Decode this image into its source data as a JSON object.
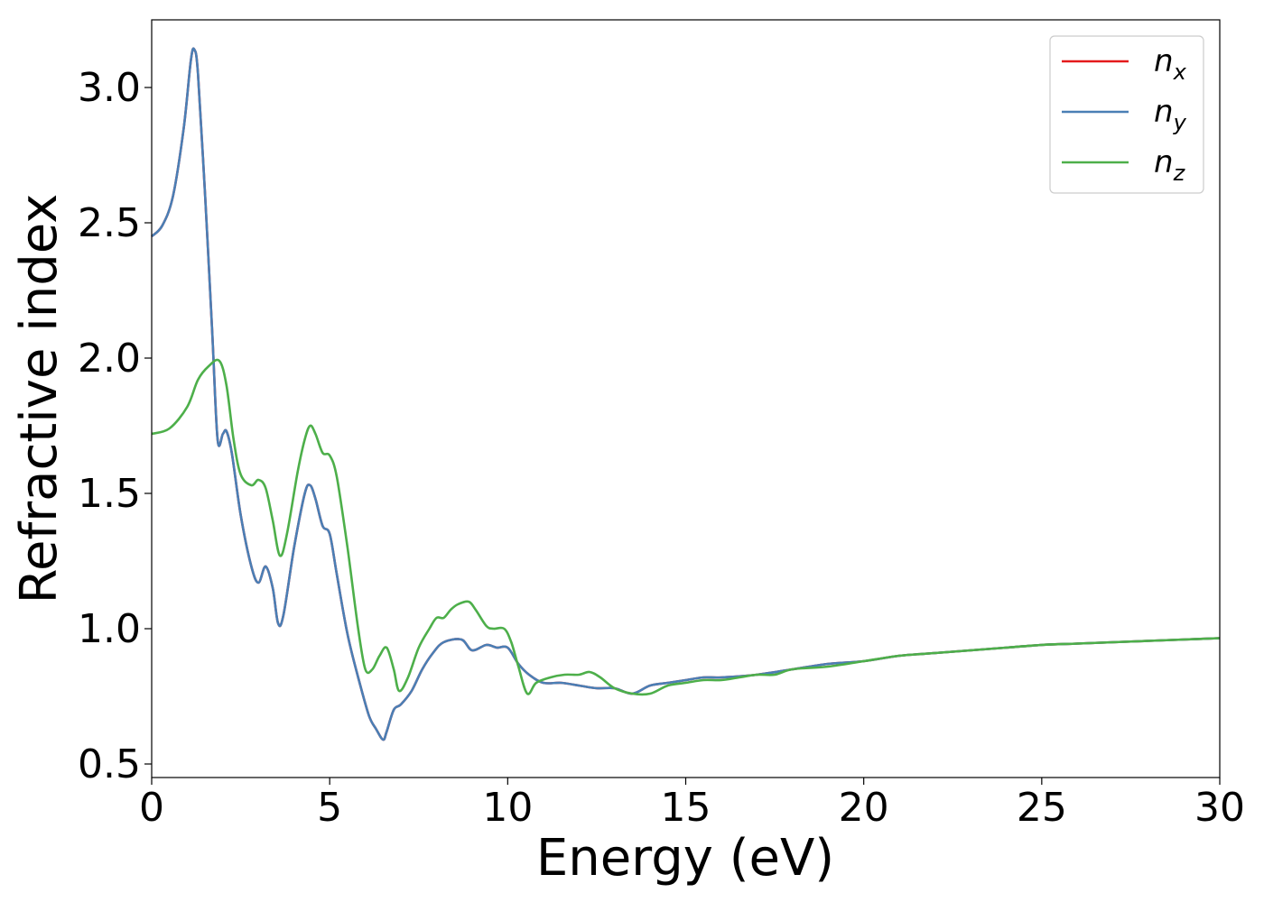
{
  "chart_data": {
    "type": "line",
    "xlabel": "Energy (eV)",
    "ylabel": "Refractive index",
    "xlim": [
      0,
      30
    ],
    "ylim": [
      0.45,
      3.25
    ],
    "xticks": [
      0,
      5,
      10,
      15,
      20,
      25,
      30
    ],
    "xtick_labels": [
      "0",
      "5",
      "10",
      "15",
      "20",
      "25",
      "30"
    ],
    "yticks": [
      0.5,
      1.0,
      1.5,
      2.0,
      2.5,
      3.0
    ],
    "ytick_labels": [
      "0.5",
      "1.0",
      "1.5",
      "2.0",
      "2.5",
      "3.0"
    ],
    "grid": false,
    "legend_position": "top-right",
    "series": [
      {
        "name": "n",
        "subscript": "x",
        "color": "#e41a1c",
        "x": [
          0,
          0.3,
          0.6,
          0.9,
          1.1,
          1.2,
          1.3,
          1.5,
          1.7,
          1.85,
          2.0,
          2.1,
          2.25,
          2.5,
          2.8,
          3.0,
          3.2,
          3.4,
          3.55,
          3.7,
          4.0,
          4.3,
          4.45,
          4.6,
          4.8,
          5.0,
          5.2,
          5.5,
          5.8,
          6.1,
          6.3,
          6.5,
          6.6,
          6.8,
          7.0,
          7.3,
          7.6,
          7.9,
          8.2,
          8.7,
          9.0,
          9.4,
          9.7,
          10.0,
          10.3,
          10.6,
          11.0,
          11.5,
          12.0,
          12.5,
          13.0,
          13.5,
          14.0,
          14.5,
          15.0,
          15.5,
          16.0,
          17.0,
          18.0,
          19.0,
          20.0,
          21.0,
          22.0,
          23.0,
          24.0,
          25.0,
          26.0,
          27.0,
          28.0,
          29.0,
          30.0
        ],
        "values": [
          2.45,
          2.49,
          2.6,
          2.85,
          3.1,
          3.14,
          3.05,
          2.6,
          2.1,
          1.7,
          1.72,
          1.73,
          1.65,
          1.42,
          1.23,
          1.17,
          1.23,
          1.15,
          1.02,
          1.05,
          1.3,
          1.5,
          1.53,
          1.48,
          1.38,
          1.35,
          1.2,
          0.98,
          0.82,
          0.68,
          0.63,
          0.59,
          0.62,
          0.7,
          0.72,
          0.77,
          0.85,
          0.91,
          0.95,
          0.96,
          0.92,
          0.94,
          0.93,
          0.93,
          0.87,
          0.83,
          0.8,
          0.8,
          0.79,
          0.78,
          0.78,
          0.76,
          0.79,
          0.8,
          0.81,
          0.82,
          0.82,
          0.83,
          0.85,
          0.87,
          0.88,
          0.9,
          0.91,
          0.92,
          0.93,
          0.94,
          0.945,
          0.95,
          0.955,
          0.96,
          0.965
        ]
      },
      {
        "name": "n",
        "subscript": "y",
        "color": "#4a7fb5",
        "x": [
          0,
          0.3,
          0.6,
          0.9,
          1.1,
          1.2,
          1.3,
          1.5,
          1.7,
          1.85,
          2.0,
          2.1,
          2.25,
          2.5,
          2.8,
          3.0,
          3.2,
          3.4,
          3.55,
          3.7,
          4.0,
          4.3,
          4.45,
          4.6,
          4.8,
          5.0,
          5.2,
          5.5,
          5.8,
          6.1,
          6.3,
          6.5,
          6.6,
          6.8,
          7.0,
          7.3,
          7.6,
          7.9,
          8.2,
          8.7,
          9.0,
          9.4,
          9.7,
          10.0,
          10.3,
          10.6,
          11.0,
          11.5,
          12.0,
          12.5,
          13.0,
          13.5,
          14.0,
          14.5,
          15.0,
          15.5,
          16.0,
          17.0,
          18.0,
          19.0,
          20.0,
          21.0,
          22.0,
          23.0,
          24.0,
          25.0,
          26.0,
          27.0,
          28.0,
          29.0,
          30.0
        ],
        "values": [
          2.45,
          2.49,
          2.6,
          2.85,
          3.1,
          3.14,
          3.05,
          2.6,
          2.1,
          1.7,
          1.72,
          1.73,
          1.65,
          1.42,
          1.23,
          1.17,
          1.23,
          1.15,
          1.02,
          1.05,
          1.3,
          1.5,
          1.53,
          1.48,
          1.38,
          1.35,
          1.2,
          0.98,
          0.82,
          0.68,
          0.63,
          0.59,
          0.62,
          0.7,
          0.72,
          0.77,
          0.85,
          0.91,
          0.95,
          0.96,
          0.92,
          0.94,
          0.93,
          0.93,
          0.87,
          0.83,
          0.8,
          0.8,
          0.79,
          0.78,
          0.78,
          0.76,
          0.79,
          0.8,
          0.81,
          0.82,
          0.82,
          0.83,
          0.85,
          0.87,
          0.88,
          0.9,
          0.91,
          0.92,
          0.93,
          0.94,
          0.945,
          0.95,
          0.955,
          0.96,
          0.965
        ]
      },
      {
        "name": "n",
        "subscript": "z",
        "color": "#4daf4a",
        "x": [
          0,
          0.5,
          1.0,
          1.3,
          1.6,
          1.9,
          2.1,
          2.3,
          2.5,
          2.8,
          3.0,
          3.2,
          3.4,
          3.6,
          3.8,
          4.1,
          4.3,
          4.45,
          4.6,
          4.8,
          5.0,
          5.2,
          5.5,
          5.8,
          6.0,
          6.2,
          6.4,
          6.6,
          6.8,
          6.95,
          7.2,
          7.5,
          7.8,
          8.0,
          8.2,
          8.4,
          8.6,
          8.9,
          9.1,
          9.4,
          9.6,
          9.9,
          10.1,
          10.3,
          10.55,
          10.8,
          11.2,
          11.6,
          12.0,
          12.3,
          12.6,
          13.0,
          13.5,
          14.0,
          14.5,
          15.0,
          15.5,
          16.0,
          16.5,
          17.0,
          17.5,
          18.0,
          19.0,
          20.0,
          21.0,
          22.0,
          23.0,
          24.0,
          25.0,
          26.0,
          27.0,
          28.0,
          29.0,
          30.0
        ],
        "values": [
          1.72,
          1.74,
          1.82,
          1.92,
          1.97,
          1.99,
          1.9,
          1.7,
          1.57,
          1.53,
          1.55,
          1.52,
          1.4,
          1.27,
          1.35,
          1.58,
          1.7,
          1.75,
          1.72,
          1.65,
          1.64,
          1.56,
          1.3,
          1.0,
          0.85,
          0.85,
          0.9,
          0.93,
          0.85,
          0.77,
          0.82,
          0.93,
          1.0,
          1.04,
          1.04,
          1.07,
          1.09,
          1.1,
          1.07,
          1.01,
          1.0,
          1.0,
          0.95,
          0.86,
          0.76,
          0.8,
          0.82,
          0.83,
          0.83,
          0.84,
          0.82,
          0.78,
          0.76,
          0.76,
          0.79,
          0.8,
          0.81,
          0.81,
          0.82,
          0.83,
          0.83,
          0.85,
          0.86,
          0.88,
          0.9,
          0.91,
          0.92,
          0.93,
          0.94,
          0.945,
          0.95,
          0.955,
          0.96,
          0.965
        ]
      }
    ]
  }
}
